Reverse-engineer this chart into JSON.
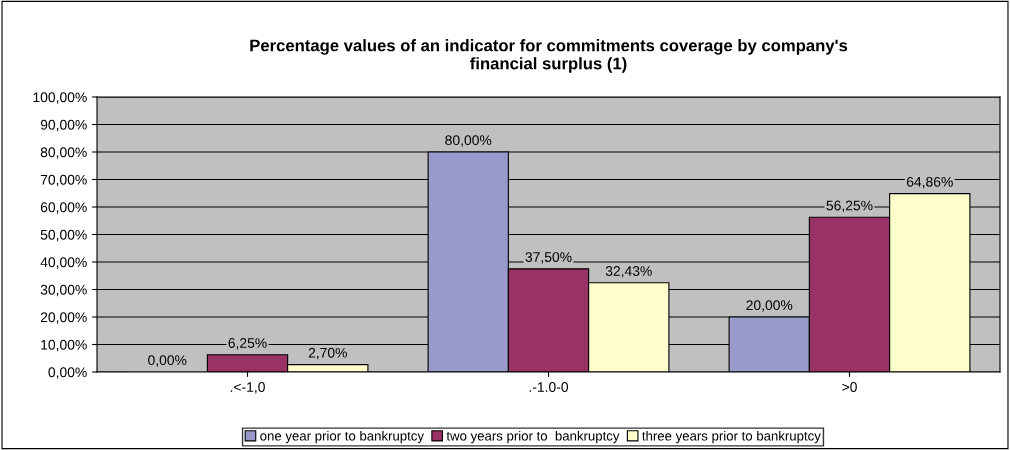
{
  "chart_data": {
    "type": "bar",
    "title": "Percentage values of an indicator for commitments coverage by company's\nfinancial surplus (1)",
    "categories": [
      ".<-1,0",
      ".-1.0-0",
      ">0"
    ],
    "series": [
      {
        "name": "one year prior to bankruptcy",
        "color": "#9999cc",
        "values": [
          0,
          80,
          20
        ],
        "value_labels": [
          "0,00%",
          "80,00%",
          "20,00%"
        ]
      },
      {
        "name": "two years prior to  bankruptcy",
        "color": "#993366",
        "values": [
          6.25,
          37.5,
          56.25
        ],
        "value_labels": [
          "6,25%",
          "37,50%",
          "56,25%"
        ]
      },
      {
        "name": "three years prior to bankruptcy",
        "color": "#ffffcc",
        "values": [
          2.7,
          32.43,
          64.86
        ],
        "value_labels": [
          "2,70%",
          "32,43%",
          "64,86%"
        ]
      }
    ],
    "ylim": [
      0,
      100
    ],
    "yticks": [
      {
        "value": 0,
        "label": "0,00%"
      },
      {
        "value": 10,
        "label": "10,00%"
      },
      {
        "value": 20,
        "label": "20,00%"
      },
      {
        "value": 30,
        "label": "30,00%"
      },
      {
        "value": 40,
        "label": "40,00%"
      },
      {
        "value": 50,
        "label": "50,00%"
      },
      {
        "value": 60,
        "label": "60,00%"
      },
      {
        "value": 70,
        "label": "70,00%"
      },
      {
        "value": 80,
        "label": "80,00%"
      },
      {
        "value": 90,
        "label": "90,00%"
      },
      {
        "value": 100,
        "label": "100,00%"
      }
    ],
    "grid": "y",
    "legend": "bottom"
  }
}
